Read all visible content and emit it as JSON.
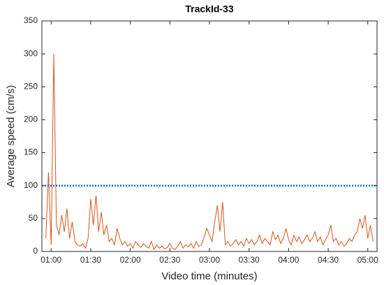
{
  "chart_data": {
    "type": "line",
    "title": "TrackId-33",
    "x_label": "Video time (minutes)",
    "y_label": "Average speed (cm/s)",
    "x": [
      56,
      58,
      60,
      62,
      64,
      66,
      68,
      70,
      72,
      74,
      76,
      78,
      80,
      82,
      84,
      86,
      88,
      90,
      92,
      94,
      96,
      98,
      100,
      102,
      104,
      106,
      108,
      110,
      112,
      114,
      116,
      118,
      120,
      122,
      124,
      126,
      128,
      130,
      132,
      134,
      136,
      138,
      140,
      142,
      144,
      146,
      148,
      150,
      152,
      154,
      156,
      158,
      160,
      162,
      164,
      166,
      168,
      170,
      172,
      174,
      176,
      178,
      180,
      182,
      184,
      186,
      188,
      190,
      192,
      194,
      196,
      198,
      200,
      202,
      204,
      206,
      208,
      210,
      212,
      214,
      216,
      218,
      220,
      222,
      224,
      226,
      228,
      230,
      232,
      234,
      236,
      238,
      240,
      242,
      244,
      246,
      248,
      250,
      252,
      254,
      256,
      258,
      260,
      262,
      264,
      266,
      268,
      270,
      272,
      274,
      276,
      278,
      280,
      282,
      284,
      286,
      288,
      290,
      292,
      294,
      296,
      298,
      300,
      302,
      304
    ],
    "series": [
      {
        "color": "#d95319",
        "values": [
          20,
          120,
          10,
          300,
          40,
          25,
          55,
          30,
          65,
          20,
          45,
          15,
          10,
          8,
          12,
          5,
          20,
          80,
          40,
          85,
          30,
          60,
          25,
          40,
          15,
          20,
          10,
          35,
          20,
          10,
          15,
          8,
          12,
          5,
          15,
          10,
          6,
          12,
          8,
          5,
          15,
          3,
          10,
          5,
          8,
          4,
          6,
          12,
          5,
          3,
          8,
          15,
          5,
          10,
          7,
          12,
          5,
          15,
          8,
          10,
          22,
          35,
          25,
          15,
          45,
          70,
          30,
          75,
          10,
          15,
          8,
          12,
          18,
          10,
          15,
          8,
          20,
          12,
          18,
          10,
          15,
          25,
          12,
          20,
          15,
          10,
          30,
          18,
          25,
          12,
          20,
          35,
          18,
          10,
          25,
          15,
          22,
          12,
          18,
          25,
          15,
          20,
          30,
          15,
          22,
          10,
          18,
          25,
          40,
          15,
          20,
          10,
          15,
          8,
          12,
          20,
          15,
          25,
          30,
          50,
          35,
          55,
          20,
          40,
          15
        ]
      }
    ],
    "hline": {
      "value": 100,
      "color": "#0072bd",
      "style": "dotted"
    },
    "xlim": [
      53,
      307
    ],
    "xticks": [
      {
        "value": 60,
        "label": "01:00"
      },
      {
        "value": 90,
        "label": "01:30"
      },
      {
        "value": 120,
        "label": "02:00"
      },
      {
        "value": 150,
        "label": "02:30"
      },
      {
        "value": 180,
        "label": "03:00"
      },
      {
        "value": 210,
        "label": "03:30"
      },
      {
        "value": 240,
        "label": "04:00"
      },
      {
        "value": 270,
        "label": "04:30"
      },
      {
        "value": 300,
        "label": "05:00"
      }
    ],
    "ylim": [
      0,
      350
    ],
    "yticks": [
      0,
      50,
      100,
      150,
      200,
      250,
      300,
      350
    ],
    "grid": false
  }
}
